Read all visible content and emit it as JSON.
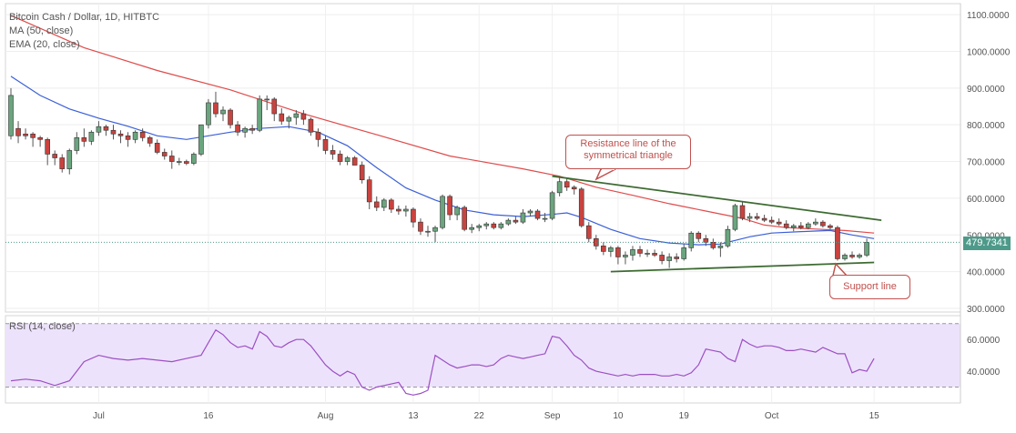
{
  "header": {
    "title": "Bitcoin Cash / Dollar, 1D, HITBTC",
    "ma_label": "MA (50, close)",
    "ema_label": "EMA (20, close)",
    "rsi_label": "RSI (14, close)"
  },
  "last_price": "479.7341",
  "annotations": {
    "resistance": "Resistance line of the symmetrical triangle",
    "support": "Support line"
  },
  "colors": {
    "up": "#6aa57e",
    "down": "#c9433f",
    "ma": "#e04b4b",
    "ema": "#3b5fd8",
    "trendline": "#3d6b32",
    "rsi_line": "#9b4fc4",
    "rsi_band": "#ede2fb",
    "price_tag": "#4e9a8a"
  },
  "chart_data": {
    "type": "candlestick",
    "title": "Bitcoin Cash / Dollar, 1D, HITBTC",
    "price_axis": {
      "ylim": [
        290,
        1130
      ],
      "ticks": [
        "1100.0000",
        "1000.0000",
        "900.0000",
        "800.0000",
        "700.0000",
        "600.0000",
        "500.0000",
        "400.0000",
        "300.0000"
      ]
    },
    "x_axis": {
      "start_date": "2018-06-19",
      "ticks": [
        {
          "label": "Jul",
          "index": 12
        },
        {
          "label": "16",
          "index": 27
        },
        {
          "label": "Aug",
          "index": 43
        },
        {
          "label": "13",
          "index": 55
        },
        {
          "label": "22",
          "index": 64
        },
        {
          "label": "Sep",
          "index": 74
        },
        {
          "label": "10",
          "index": 83
        },
        {
          "label": "19",
          "index": 92
        },
        {
          "label": "Oct",
          "index": 104
        },
        {
          "label": "15",
          "index": 118
        }
      ]
    },
    "candles": [
      {
        "o": 770,
        "h": 900,
        "l": 760,
        "c": 880
      },
      {
        "o": 790,
        "h": 810,
        "l": 750,
        "c": 770
      },
      {
        "o": 775,
        "h": 790,
        "l": 760,
        "c": 770
      },
      {
        "o": 775,
        "h": 780,
        "l": 740,
        "c": 765
      },
      {
        "o": 765,
        "h": 770,
        "l": 740,
        "c": 760
      },
      {
        "o": 760,
        "h": 765,
        "l": 690,
        "c": 720
      },
      {
        "o": 720,
        "h": 730,
        "l": 690,
        "c": 710
      },
      {
        "o": 710,
        "h": 720,
        "l": 670,
        "c": 680
      },
      {
        "o": 680,
        "h": 735,
        "l": 665,
        "c": 730
      },
      {
        "o": 730,
        "h": 780,
        "l": 720,
        "c": 765
      },
      {
        "o": 765,
        "h": 790,
        "l": 740,
        "c": 755
      },
      {
        "o": 755,
        "h": 785,
        "l": 745,
        "c": 780
      },
      {
        "o": 780,
        "h": 810,
        "l": 770,
        "c": 795
      },
      {
        "o": 795,
        "h": 800,
        "l": 770,
        "c": 785
      },
      {
        "o": 785,
        "h": 800,
        "l": 760,
        "c": 775
      },
      {
        "o": 775,
        "h": 785,
        "l": 750,
        "c": 770
      },
      {
        "o": 770,
        "h": 780,
        "l": 740,
        "c": 760
      },
      {
        "o": 760,
        "h": 785,
        "l": 750,
        "c": 780
      },
      {
        "o": 780,
        "h": 790,
        "l": 755,
        "c": 765
      },
      {
        "o": 765,
        "h": 770,
        "l": 740,
        "c": 750
      },
      {
        "o": 750,
        "h": 760,
        "l": 720,
        "c": 725
      },
      {
        "o": 725,
        "h": 735,
        "l": 705,
        "c": 715
      },
      {
        "o": 715,
        "h": 730,
        "l": 680,
        "c": 700
      },
      {
        "o": 700,
        "h": 710,
        "l": 690,
        "c": 700
      },
      {
        "o": 700,
        "h": 705,
        "l": 690,
        "c": 695
      },
      {
        "o": 695,
        "h": 725,
        "l": 690,
        "c": 720
      },
      {
        "o": 720,
        "h": 800,
        "l": 715,
        "c": 800
      },
      {
        "o": 800,
        "h": 870,
        "l": 790,
        "c": 860
      },
      {
        "o": 860,
        "h": 890,
        "l": 820,
        "c": 830
      },
      {
        "o": 830,
        "h": 850,
        "l": 810,
        "c": 840
      },
      {
        "o": 840,
        "h": 845,
        "l": 790,
        "c": 800
      },
      {
        "o": 800,
        "h": 810,
        "l": 770,
        "c": 780
      },
      {
        "o": 780,
        "h": 795,
        "l": 765,
        "c": 790
      },
      {
        "o": 790,
        "h": 800,
        "l": 775,
        "c": 785
      },
      {
        "o": 785,
        "h": 880,
        "l": 780,
        "c": 870
      },
      {
        "o": 870,
        "h": 880,
        "l": 840,
        "c": 870
      },
      {
        "o": 870,
        "h": 875,
        "l": 810,
        "c": 830
      },
      {
        "o": 830,
        "h": 845,
        "l": 800,
        "c": 810
      },
      {
        "o": 810,
        "h": 825,
        "l": 790,
        "c": 820
      },
      {
        "o": 820,
        "h": 840,
        "l": 800,
        "c": 830
      },
      {
        "o": 830,
        "h": 840,
        "l": 800,
        "c": 815
      },
      {
        "o": 815,
        "h": 820,
        "l": 770,
        "c": 780
      },
      {
        "o": 780,
        "h": 790,
        "l": 740,
        "c": 760
      },
      {
        "o": 760,
        "h": 770,
        "l": 720,
        "c": 730
      },
      {
        "o": 730,
        "h": 745,
        "l": 705,
        "c": 720
      },
      {
        "o": 720,
        "h": 730,
        "l": 690,
        "c": 700
      },
      {
        "o": 700,
        "h": 715,
        "l": 690,
        "c": 710
      },
      {
        "o": 710,
        "h": 715,
        "l": 690,
        "c": 690
      },
      {
        "o": 690,
        "h": 700,
        "l": 640,
        "c": 650
      },
      {
        "o": 650,
        "h": 660,
        "l": 570,
        "c": 590
      },
      {
        "o": 590,
        "h": 605,
        "l": 565,
        "c": 575
      },
      {
        "o": 575,
        "h": 600,
        "l": 565,
        "c": 595
      },
      {
        "o": 595,
        "h": 600,
        "l": 560,
        "c": 570
      },
      {
        "o": 570,
        "h": 580,
        "l": 555,
        "c": 565
      },
      {
        "o": 565,
        "h": 580,
        "l": 550,
        "c": 570
      },
      {
        "o": 570,
        "h": 575,
        "l": 520,
        "c": 535
      },
      {
        "o": 535,
        "h": 545,
        "l": 500,
        "c": 510
      },
      {
        "o": 510,
        "h": 525,
        "l": 495,
        "c": 510
      },
      {
        "o": 510,
        "h": 525,
        "l": 480,
        "c": 520
      },
      {
        "o": 520,
        "h": 610,
        "l": 515,
        "c": 605
      },
      {
        "o": 605,
        "h": 610,
        "l": 540,
        "c": 555
      },
      {
        "o": 555,
        "h": 580,
        "l": 540,
        "c": 575
      },
      {
        "o": 575,
        "h": 580,
        "l": 510,
        "c": 515
      },
      {
        "o": 515,
        "h": 530,
        "l": 505,
        "c": 520
      },
      {
        "o": 520,
        "h": 530,
        "l": 510,
        "c": 525
      },
      {
        "o": 525,
        "h": 535,
        "l": 515,
        "c": 530
      },
      {
        "o": 530,
        "h": 535,
        "l": 515,
        "c": 520
      },
      {
        "o": 520,
        "h": 535,
        "l": 515,
        "c": 530
      },
      {
        "o": 530,
        "h": 545,
        "l": 525,
        "c": 540
      },
      {
        "o": 540,
        "h": 550,
        "l": 530,
        "c": 535
      },
      {
        "o": 535,
        "h": 570,
        "l": 530,
        "c": 560
      },
      {
        "o": 560,
        "h": 570,
        "l": 550,
        "c": 565
      },
      {
        "o": 565,
        "h": 570,
        "l": 540,
        "c": 545
      },
      {
        "o": 545,
        "h": 560,
        "l": 535,
        "c": 545
      },
      {
        "o": 545,
        "h": 620,
        "l": 540,
        "c": 615
      },
      {
        "o": 615,
        "h": 660,
        "l": 605,
        "c": 645
      },
      {
        "o": 645,
        "h": 655,
        "l": 620,
        "c": 630
      },
      {
        "o": 630,
        "h": 635,
        "l": 610,
        "c": 625
      },
      {
        "o": 625,
        "h": 630,
        "l": 520,
        "c": 525
      },
      {
        "o": 525,
        "h": 535,
        "l": 480,
        "c": 490
      },
      {
        "o": 490,
        "h": 500,
        "l": 460,
        "c": 470
      },
      {
        "o": 470,
        "h": 480,
        "l": 445,
        "c": 455
      },
      {
        "o": 455,
        "h": 470,
        "l": 440,
        "c": 465
      },
      {
        "o": 465,
        "h": 470,
        "l": 420,
        "c": 440
      },
      {
        "o": 440,
        "h": 455,
        "l": 420,
        "c": 445
      },
      {
        "o": 445,
        "h": 470,
        "l": 430,
        "c": 460
      },
      {
        "o": 460,
        "h": 470,
        "l": 440,
        "c": 450
      },
      {
        "o": 450,
        "h": 460,
        "l": 440,
        "c": 450
      },
      {
        "o": 450,
        "h": 460,
        "l": 440,
        "c": 445
      },
      {
        "o": 445,
        "h": 455,
        "l": 420,
        "c": 430
      },
      {
        "o": 430,
        "h": 450,
        "l": 410,
        "c": 440
      },
      {
        "o": 440,
        "h": 450,
        "l": 425,
        "c": 435
      },
      {
        "o": 435,
        "h": 475,
        "l": 430,
        "c": 465
      },
      {
        "o": 465,
        "h": 510,
        "l": 455,
        "c": 505
      },
      {
        "o": 505,
        "h": 510,
        "l": 480,
        "c": 490
      },
      {
        "o": 490,
        "h": 500,
        "l": 470,
        "c": 480
      },
      {
        "o": 480,
        "h": 490,
        "l": 460,
        "c": 465
      },
      {
        "o": 465,
        "h": 480,
        "l": 440,
        "c": 470
      },
      {
        "o": 470,
        "h": 525,
        "l": 465,
        "c": 515
      },
      {
        "o": 515,
        "h": 585,
        "l": 510,
        "c": 580
      },
      {
        "o": 580,
        "h": 590,
        "l": 540,
        "c": 545
      },
      {
        "o": 545,
        "h": 560,
        "l": 535,
        "c": 550
      },
      {
        "o": 550,
        "h": 560,
        "l": 540,
        "c": 545
      },
      {
        "o": 545,
        "h": 555,
        "l": 535,
        "c": 540
      },
      {
        "o": 540,
        "h": 550,
        "l": 530,
        "c": 535
      },
      {
        "o": 535,
        "h": 545,
        "l": 525,
        "c": 530
      },
      {
        "o": 530,
        "h": 540,
        "l": 515,
        "c": 520
      },
      {
        "o": 520,
        "h": 530,
        "l": 510,
        "c": 525
      },
      {
        "o": 525,
        "h": 535,
        "l": 515,
        "c": 520
      },
      {
        "o": 520,
        "h": 535,
        "l": 515,
        "c": 530
      },
      {
        "o": 530,
        "h": 545,
        "l": 525,
        "c": 535
      },
      {
        "o": 535,
        "h": 540,
        "l": 520,
        "c": 525
      },
      {
        "o": 525,
        "h": 530,
        "l": 515,
        "c": 520
      },
      {
        "o": 520,
        "h": 525,
        "l": 430,
        "c": 435
      },
      {
        "o": 435,
        "h": 450,
        "l": 430,
        "c": 445
      },
      {
        "o": 445,
        "h": 455,
        "l": 435,
        "c": 440
      },
      {
        "o": 440,
        "h": 450,
        "l": 435,
        "c": 445
      },
      {
        "o": 445,
        "h": 490,
        "l": 440,
        "c": 480
      }
    ],
    "ma_50": [
      [
        0,
        1098
      ],
      [
        10,
        1010
      ],
      [
        20,
        948
      ],
      [
        30,
        895
      ],
      [
        40,
        830
      ],
      [
        50,
        773
      ],
      [
        60,
        715
      ],
      [
        70,
        680
      ],
      [
        75,
        660
      ],
      [
        80,
        630
      ],
      [
        85,
        608
      ],
      [
        90,
        585
      ],
      [
        95,
        565
      ],
      [
        100,
        545
      ],
      [
        103,
        527
      ],
      [
        106,
        520
      ],
      [
        110,
        516
      ],
      [
        114,
        512
      ],
      [
        118,
        505
      ]
    ],
    "ema_20": [
      [
        0,
        932
      ],
      [
        4,
        880
      ],
      [
        8,
        843
      ],
      [
        12,
        818
      ],
      [
        16,
        796
      ],
      [
        20,
        770
      ],
      [
        24,
        760
      ],
      [
        27,
        770
      ],
      [
        30,
        780
      ],
      [
        34,
        790
      ],
      [
        38,
        795
      ],
      [
        42,
        780
      ],
      [
        46,
        743
      ],
      [
        50,
        683
      ],
      [
        54,
        628
      ],
      [
        58,
        595
      ],
      [
        62,
        568
      ],
      [
        66,
        555
      ],
      [
        70,
        550
      ],
      [
        74,
        556
      ],
      [
        76,
        560
      ],
      [
        78,
        548
      ],
      [
        82,
        515
      ],
      [
        86,
        490
      ],
      [
        90,
        478
      ],
      [
        94,
        473
      ],
      [
        97,
        475
      ],
      [
        99,
        485
      ],
      [
        101,
        495
      ],
      [
        104,
        505
      ],
      [
        108,
        509
      ],
      [
        112,
        512
      ],
      [
        115,
        500
      ],
      [
        118,
        490
      ]
    ],
    "trendlines": [
      {
        "name": "resistance",
        "from": [
          74,
          660
        ],
        "to": [
          119,
          540
        ]
      },
      {
        "name": "support",
        "from": [
          82,
          400
        ],
        "to": [
          118,
          425
        ]
      }
    ],
    "rsi": {
      "ylim": [
        20,
        75
      ],
      "band": [
        30,
        70
      ],
      "ticks": [
        "60.0000",
        "40.0000"
      ],
      "values": [
        [
          0,
          34
        ],
        [
          2,
          35
        ],
        [
          4,
          34
        ],
        [
          6,
          31
        ],
        [
          8,
          34
        ],
        [
          10,
          46
        ],
        [
          12,
          50
        ],
        [
          14,
          48
        ],
        [
          16,
          47
        ],
        [
          18,
          48
        ],
        [
          20,
          47
        ],
        [
          22,
          46
        ],
        [
          24,
          48
        ],
        [
          26,
          50
        ],
        [
          27,
          58
        ],
        [
          28,
          66
        ],
        [
          29,
          63
        ],
        [
          30,
          58
        ],
        [
          31,
          55
        ],
        [
          32,
          56
        ],
        [
          33,
          54
        ],
        [
          34,
          65
        ],
        [
          35,
          62
        ],
        [
          36,
          56
        ],
        [
          37,
          55
        ],
        [
          38,
          58
        ],
        [
          39,
          60
        ],
        [
          40,
          60
        ],
        [
          41,
          56
        ],
        [
          42,
          50
        ],
        [
          43,
          44
        ],
        [
          44,
          40
        ],
        [
          45,
          37
        ],
        [
          46,
          40
        ],
        [
          47,
          38
        ],
        [
          48,
          30
        ],
        [
          49,
          28
        ],
        [
          50,
          30
        ],
        [
          51,
          31
        ],
        [
          52,
          32
        ],
        [
          53,
          33
        ],
        [
          54,
          26
        ],
        [
          55,
          25
        ],
        [
          56,
          26
        ],
        [
          57,
          28
        ],
        [
          58,
          50
        ],
        [
          59,
          47
        ],
        [
          60,
          44
        ],
        [
          61,
          42
        ],
        [
          62,
          43
        ],
        [
          63,
          44
        ],
        [
          64,
          44
        ],
        [
          65,
          43
        ],
        [
          66,
          44
        ],
        [
          67,
          48
        ],
        [
          68,
          50
        ],
        [
          69,
          49
        ],
        [
          70,
          48
        ],
        [
          71,
          49
        ],
        [
          72,
          50
        ],
        [
          73,
          51
        ],
        [
          74,
          62
        ],
        [
          75,
          61
        ],
        [
          76,
          56
        ],
        [
          77,
          50
        ],
        [
          78,
          47
        ],
        [
          79,
          42
        ],
        [
          80,
          40
        ],
        [
          81,
          39
        ],
        [
          82,
          38
        ],
        [
          83,
          37
        ],
        [
          84,
          38
        ],
        [
          85,
          37
        ],
        [
          86,
          38
        ],
        [
          87,
          38
        ],
        [
          88,
          38
        ],
        [
          89,
          37
        ],
        [
          90,
          37
        ],
        [
          91,
          38
        ],
        [
          92,
          37
        ],
        [
          93,
          39
        ],
        [
          94,
          44
        ],
        [
          95,
          54
        ],
        [
          96,
          53
        ],
        [
          97,
          52
        ],
        [
          98,
          48
        ],
        [
          99,
          46
        ],
        [
          100,
          60
        ],
        [
          101,
          57
        ],
        [
          102,
          55
        ],
        [
          103,
          56
        ],
        [
          104,
          56
        ],
        [
          105,
          55
        ],
        [
          106,
          53
        ],
        [
          107,
          53
        ],
        [
          108,
          54
        ],
        [
          109,
          53
        ],
        [
          110,
          52
        ],
        [
          111,
          55
        ],
        [
          112,
          53
        ],
        [
          113,
          51
        ],
        [
          114,
          51
        ],
        [
          115,
          39
        ],
        [
          116,
          41
        ],
        [
          117,
          40
        ],
        [
          118,
          48
        ]
      ]
    }
  }
}
